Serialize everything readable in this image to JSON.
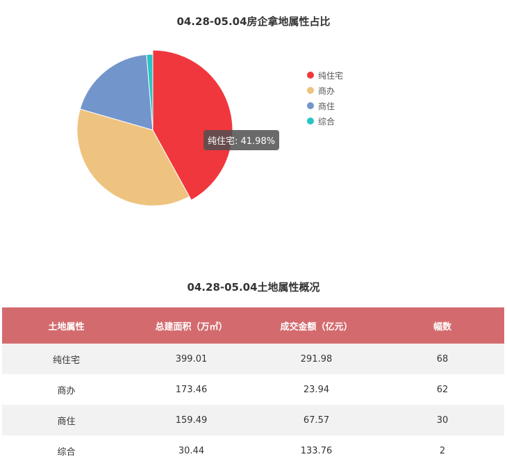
{
  "chart_data": {
    "type": "pie",
    "title": "04.28-05.04房企拿地属性占比",
    "categories": [
      "纯住宅",
      "商办",
      "商住",
      "综合"
    ],
    "values": [
      41.98,
      37.5,
      19.2,
      1.32
    ],
    "colors": [
      "#f0373d",
      "#eec380",
      "#7295cb",
      "#27c5c4"
    ],
    "legend_position": "right",
    "tooltip": "纯住宅: 41.98%"
  },
  "table": {
    "title": "04.28-05.04土地属性概况",
    "headers": [
      "土地属性",
      "总建面积（万㎡）",
      "成交金额（亿元）",
      "幅数"
    ],
    "rows": [
      [
        "纯住宅",
        "399.01",
        "291.98",
        "68"
      ],
      [
        "商办",
        "173.46",
        "23.94",
        "62"
      ],
      [
        "商住",
        "159.49",
        "67.57",
        "30"
      ],
      [
        "综合",
        "30.44",
        "133.76",
        "2"
      ]
    ]
  }
}
